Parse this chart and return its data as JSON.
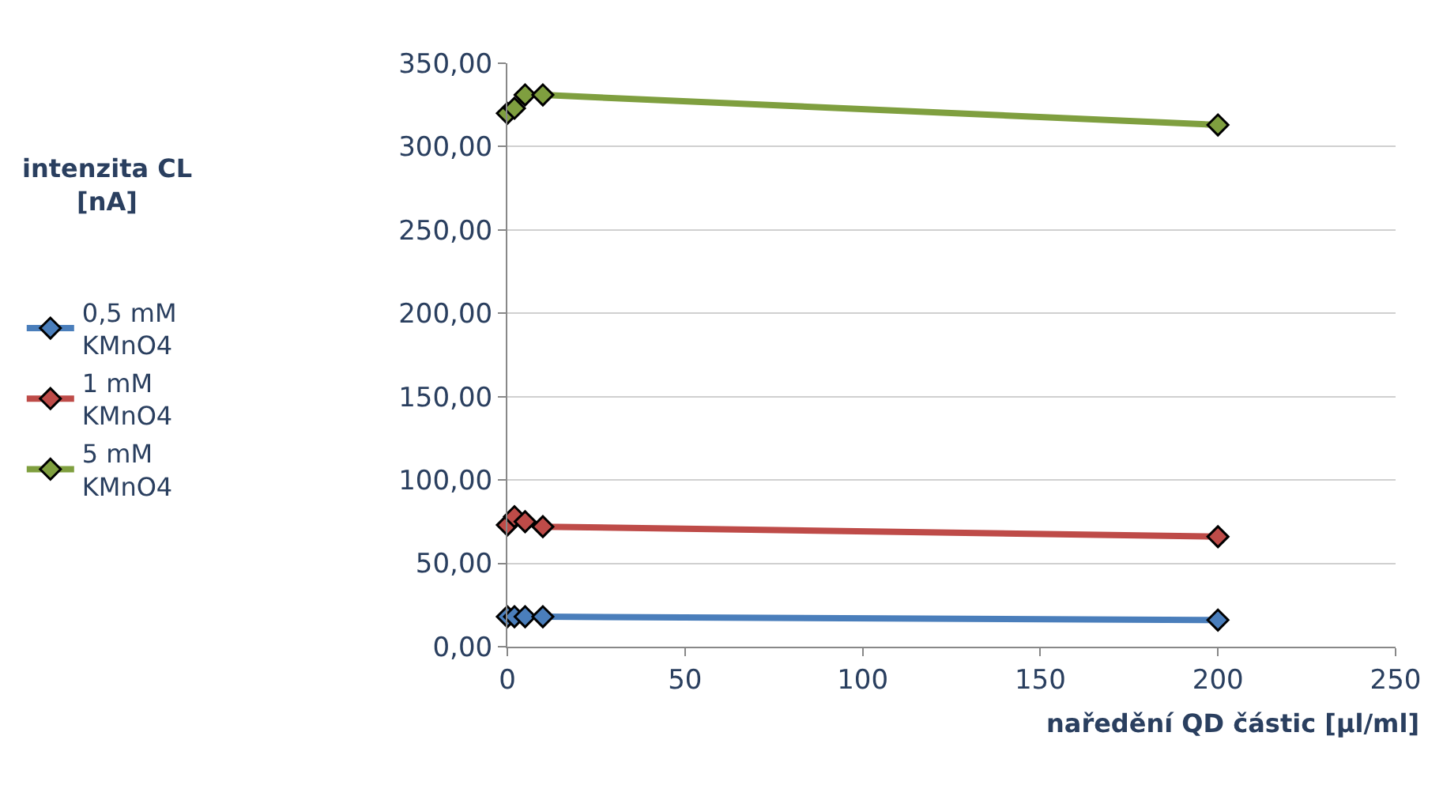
{
  "chart_data": {
    "type": "line",
    "annotations": [
      "intenzita CL\n[nA]"
    ],
    "xlabel": "naředění QD částic [µl/ml]",
    "x": [
      0,
      2,
      5,
      10,
      200
    ],
    "series": [
      {
        "name": "0,5 mM\nKMnO4",
        "color": "#4a7ebb",
        "values": [
          18,
          18,
          18,
          18,
          16
        ]
      },
      {
        "name": "1 mM\nKMnO4",
        "color": "#be4b48",
        "values": [
          73,
          78,
          75,
          72,
          66
        ]
      },
      {
        "name": "5 mM\nKMnO4",
        "color": "#7f9f3f",
        "values": [
          320,
          323,
          331,
          331,
          313
        ]
      }
    ],
    "xlim": [
      0,
      250
    ],
    "xticks": [
      0,
      50,
      100,
      150,
      200,
      250
    ],
    "ylim": [
      0,
      350
    ],
    "yticks": [
      {
        "value": 0,
        "label": "0,00"
      },
      {
        "value": 50,
        "label": "50,00"
      },
      {
        "value": 100,
        "label": "100,00"
      },
      {
        "value": 150,
        "label": "150,00"
      },
      {
        "value": 200,
        "label": "200,00"
      },
      {
        "value": 250,
        "label": "250,00"
      },
      {
        "value": 300,
        "label": "300,00"
      },
      {
        "value": 350,
        "label": "350,00"
      }
    ],
    "grid": "y",
    "legend": "left",
    "marker": "diamond",
    "line_style": "solid"
  }
}
